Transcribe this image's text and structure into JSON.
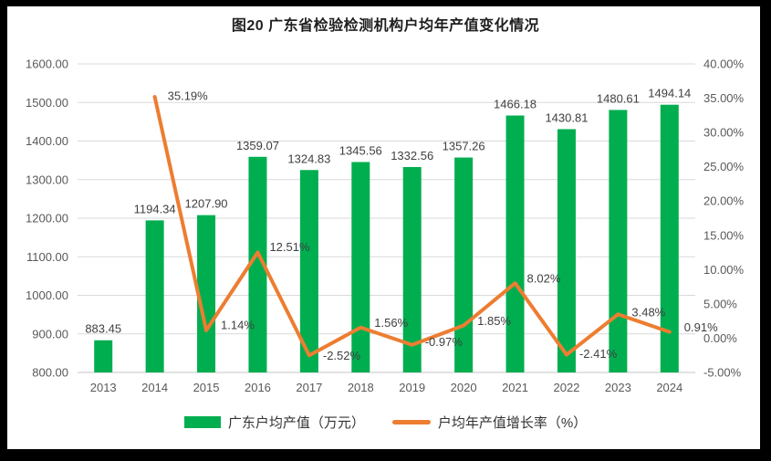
{
  "frame": {
    "border_color": "#000000",
    "canvas_color": "#ffffff"
  },
  "title": "图20 广东省检验检测机构户均年产值变化情况",
  "legend": [
    {
      "type": "bar",
      "color": "#00AE50",
      "label": "广东户均产值（万元）"
    },
    {
      "type": "line",
      "color": "#ED7D31",
      "label": "户均年产值增长率（%）"
    }
  ],
  "chart_data": {
    "type": "bar+line",
    "title": "图20 广东省检验检测机构户均年产值变化情况",
    "categories": [
      "2013",
      "2014",
      "2015",
      "2016",
      "2017",
      "2018",
      "2019",
      "2020",
      "2021",
      "2022",
      "2023",
      "2024"
    ],
    "series": [
      {
        "name": "广东户均产值（万元）",
        "type": "bar",
        "axis": "left",
        "color": "#00AE50",
        "values": [
          883.45,
          1194.34,
          1207.9,
          1359.07,
          1324.83,
          1345.56,
          1332.56,
          1357.26,
          1466.18,
          1430.81,
          1480.61,
          1494.14
        ],
        "data_labels": [
          "883.45",
          "1194.34",
          "1207.90",
          "1359.07",
          "1324.83",
          "1345.56",
          "1332.56",
          "1357.26",
          "1466.18",
          "1430.81",
          "1480.61",
          "1494.14"
        ]
      },
      {
        "name": "户均年产值增长率（%）",
        "type": "line",
        "axis": "right",
        "color": "#ED7D31",
        "values": [
          null,
          35.19,
          1.14,
          12.51,
          -2.52,
          1.56,
          -0.97,
          1.85,
          8.02,
          -2.41,
          3.48,
          0.91
        ],
        "data_labels": [
          null,
          "35.19%",
          "1.14%",
          "12.51%",
          "-2.52%",
          "1.56%",
          "-0.97%",
          "1.85%",
          "8.02%",
          "-2.41%",
          "3.48%",
          "0.91%"
        ]
      }
    ],
    "left_axis": {
      "min": 800,
      "max": 1600,
      "step": 100,
      "tick_labels": [
        "800.00",
        "900.00",
        "1000.00",
        "1100.00",
        "1200.00",
        "1300.00",
        "1400.00",
        "1500.00",
        "1600.00"
      ]
    },
    "right_axis": {
      "min": -5,
      "max": 40,
      "step": 5,
      "tick_labels": [
        "-5.00%",
        "0.00%",
        "5.00%",
        "10.00%",
        "15.00%",
        "20.00%",
        "25.00%",
        "30.00%",
        "35.00%",
        "40.00%"
      ]
    },
    "grid": true,
    "gridline_color": "#D9D9D9",
    "axis_line_color": "#C6C6C6",
    "tick_label_color": "#595959",
    "data_label_color": "#3F3F3F",
    "legend_position": "bottom"
  }
}
